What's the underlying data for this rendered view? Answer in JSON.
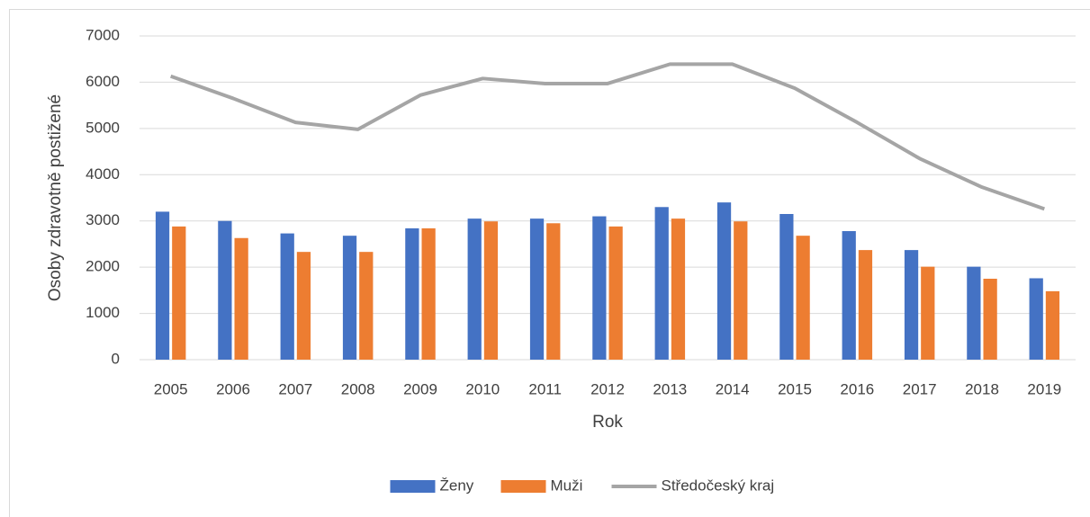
{
  "chart_data": {
    "type": "bar",
    "y_label": "Osoby zdravotně postižené",
    "x_label": "Rok",
    "categories": [
      "2005",
      "2006",
      "2007",
      "2008",
      "2009",
      "2010",
      "2011",
      "2012",
      "2013",
      "2014",
      "2015",
      "2016",
      "2017",
      "2018",
      "2019"
    ],
    "series": [
      {
        "name": "Ženy",
        "color": "#4472c4",
        "values": [
          3200,
          3000,
          2730,
          2680,
          2840,
          3050,
          3050,
          3100,
          3300,
          3400,
          3150,
          2780,
          2370,
          2010,
          1760
        ]
      },
      {
        "name": "Muži",
        "color": "#ed7d31",
        "values": [
          2880,
          2630,
          2330,
          2330,
          2840,
          2990,
          2950,
          2880,
          3050,
          2990,
          2680,
          2370,
          2010,
          1750,
          1480
        ]
      },
      {
        "name": "Středočeský kraj",
        "color": "#a5a5a5",
        "type": "line",
        "values": [
          6130,
          5650,
          5130,
          4980,
          5720,
          6080,
          5970,
          5970,
          6390,
          6390,
          5870,
          5130,
          4350,
          3730,
          3260
        ]
      }
    ],
    "ylim": [
      0,
      7000
    ],
    "yticks": [
      0,
      1000,
      2000,
      3000,
      4000,
      5000,
      6000,
      7000
    ],
    "grid": true,
    "legend": "bottom"
  }
}
